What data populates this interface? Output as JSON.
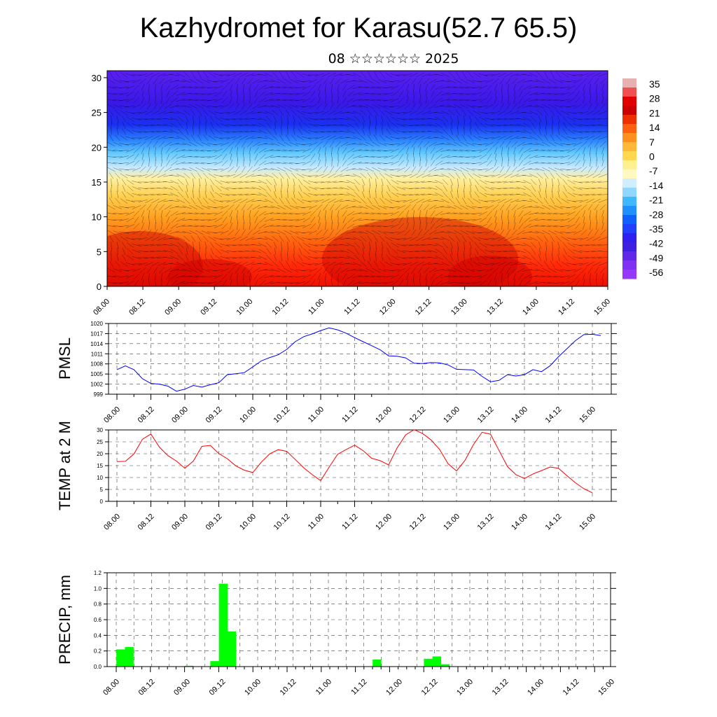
{
  "title": "Kazhydromet for Karasu(52.7 65.5)",
  "subtitle": "08 ☆☆☆☆☆☆ 2025",
  "time_labels": [
    "08.00",
    "08.12",
    "09.00",
    "09.12",
    "10.00",
    "10.12",
    "11.00",
    "11.12",
    "12.00",
    "12.12",
    "13.00",
    "13.12",
    "14.00",
    "14.12",
    "15.00"
  ],
  "chart_data": [
    {
      "type": "heatmap",
      "title": "",
      "ylabel": "",
      "y_ticks": [
        0,
        5,
        10,
        15,
        20,
        25,
        30
      ],
      "ylim": [
        0,
        31
      ],
      "colorbar_labels": [
        "35",
        "28",
        "21",
        "14",
        "7",
        "0",
        "-7",
        "-14",
        "-21",
        "-28",
        "-35",
        "-42",
        "-49",
        "-56"
      ],
      "value_range": [
        -60,
        38
      ],
      "notes": "temperature cross-section with wind barbs",
      "colors": [
        "#9b30ff",
        "#3a10e0",
        "#1f40ff",
        "#1a90ff",
        "#20c0ff",
        "#c8eaff",
        "#fff8c0",
        "#ffe060",
        "#ffb020",
        "#ff8010",
        "#ff3a10",
        "#dd0000"
      ]
    },
    {
      "type": "line",
      "ylabel": "PMSL",
      "y_ticks": [
        999,
        1002,
        1005,
        1008,
        1011,
        1014,
        1017,
        1020
      ],
      "ylim": [
        999,
        1020
      ],
      "color": "#0000ff",
      "values": [
        1006.3,
        1007.4,
        1006.3,
        1003.6,
        1002.2,
        1002,
        1001.4,
        999.9,
        1000.5,
        1001.6,
        1001.1,
        1001.8,
        1002.4,
        1004.8,
        1005.1,
        1005.4,
        1007.1,
        1008.9,
        1009.9,
        1010.7,
        1012.3,
        1014.6,
        1016.1,
        1016.9,
        1017.9,
        1018.7,
        1018.1,
        1017.1,
        1015.8,
        1014.6,
        1013.4,
        1012.2,
        1010.4,
        1010.3,
        1009.8,
        1008.2,
        1008.1,
        1008.4,
        1008.3,
        1007.7,
        1006.4,
        1006.3,
        1006.2,
        1004.3,
        1002.7,
        1003.1,
        1004.8,
        1004.4,
        1004.8,
        1006.3,
        1005.7,
        1007.4,
        1010.1,
        1012.5,
        1014.9,
        1016.7,
        1016.8,
        1016.4
      ]
    },
    {
      "type": "line",
      "ylabel": "TEMP at 2 M",
      "y_ticks": [
        0,
        5,
        10,
        15,
        20,
        25,
        30
      ],
      "ylim": [
        0,
        30
      ],
      "color": "#ff0000",
      "values": [
        16.7,
        16.8,
        19.9,
        26.1,
        28.3,
        22.8,
        19.2,
        16.9,
        13.9,
        16.9,
        23.1,
        23.5,
        20.1,
        17.9,
        14.9,
        13.1,
        12.1,
        16.4,
        20.0,
        21.7,
        21.0,
        17.6,
        14.1,
        11.2,
        8.7,
        14.4,
        19.8,
        21.8,
        23.6,
        21.3,
        18.1,
        17.1,
        15.3,
        22.4,
        27.9,
        30.1,
        28.5,
        25.8,
        21.8,
        15.8,
        12.8,
        17.2,
        23.9,
        29.0,
        28.2,
        21.4,
        14.6,
        11.2,
        9.6,
        11.5,
        12.9,
        14.4,
        13.9,
        10.8,
        7.8,
        5.3,
        3.6
      ]
    },
    {
      "type": "bar",
      "ylabel": "PRECIP, mm",
      "y_ticks": [
        "0.0",
        "0.2",
        "0.4",
        "0.6",
        "0.8",
        "1.0",
        "1.2"
      ],
      "ylim": [
        0,
        1.2
      ],
      "color": "#00ff00",
      "bars": [
        {
          "x": 1,
          "value": 0.22
        },
        {
          "x": 2,
          "value": 0.25
        },
        {
          "x": 9,
          "value": 0.01
        },
        {
          "x": 12,
          "value": 0.07
        },
        {
          "x": 13,
          "value": 1.06
        },
        {
          "x": 14,
          "value": 0.45
        },
        {
          "x": 31,
          "value": 0.09
        },
        {
          "x": 37,
          "value": 0.1
        },
        {
          "x": 38,
          "value": 0.13
        },
        {
          "x": 39,
          "value": 0.03
        }
      ]
    }
  ]
}
